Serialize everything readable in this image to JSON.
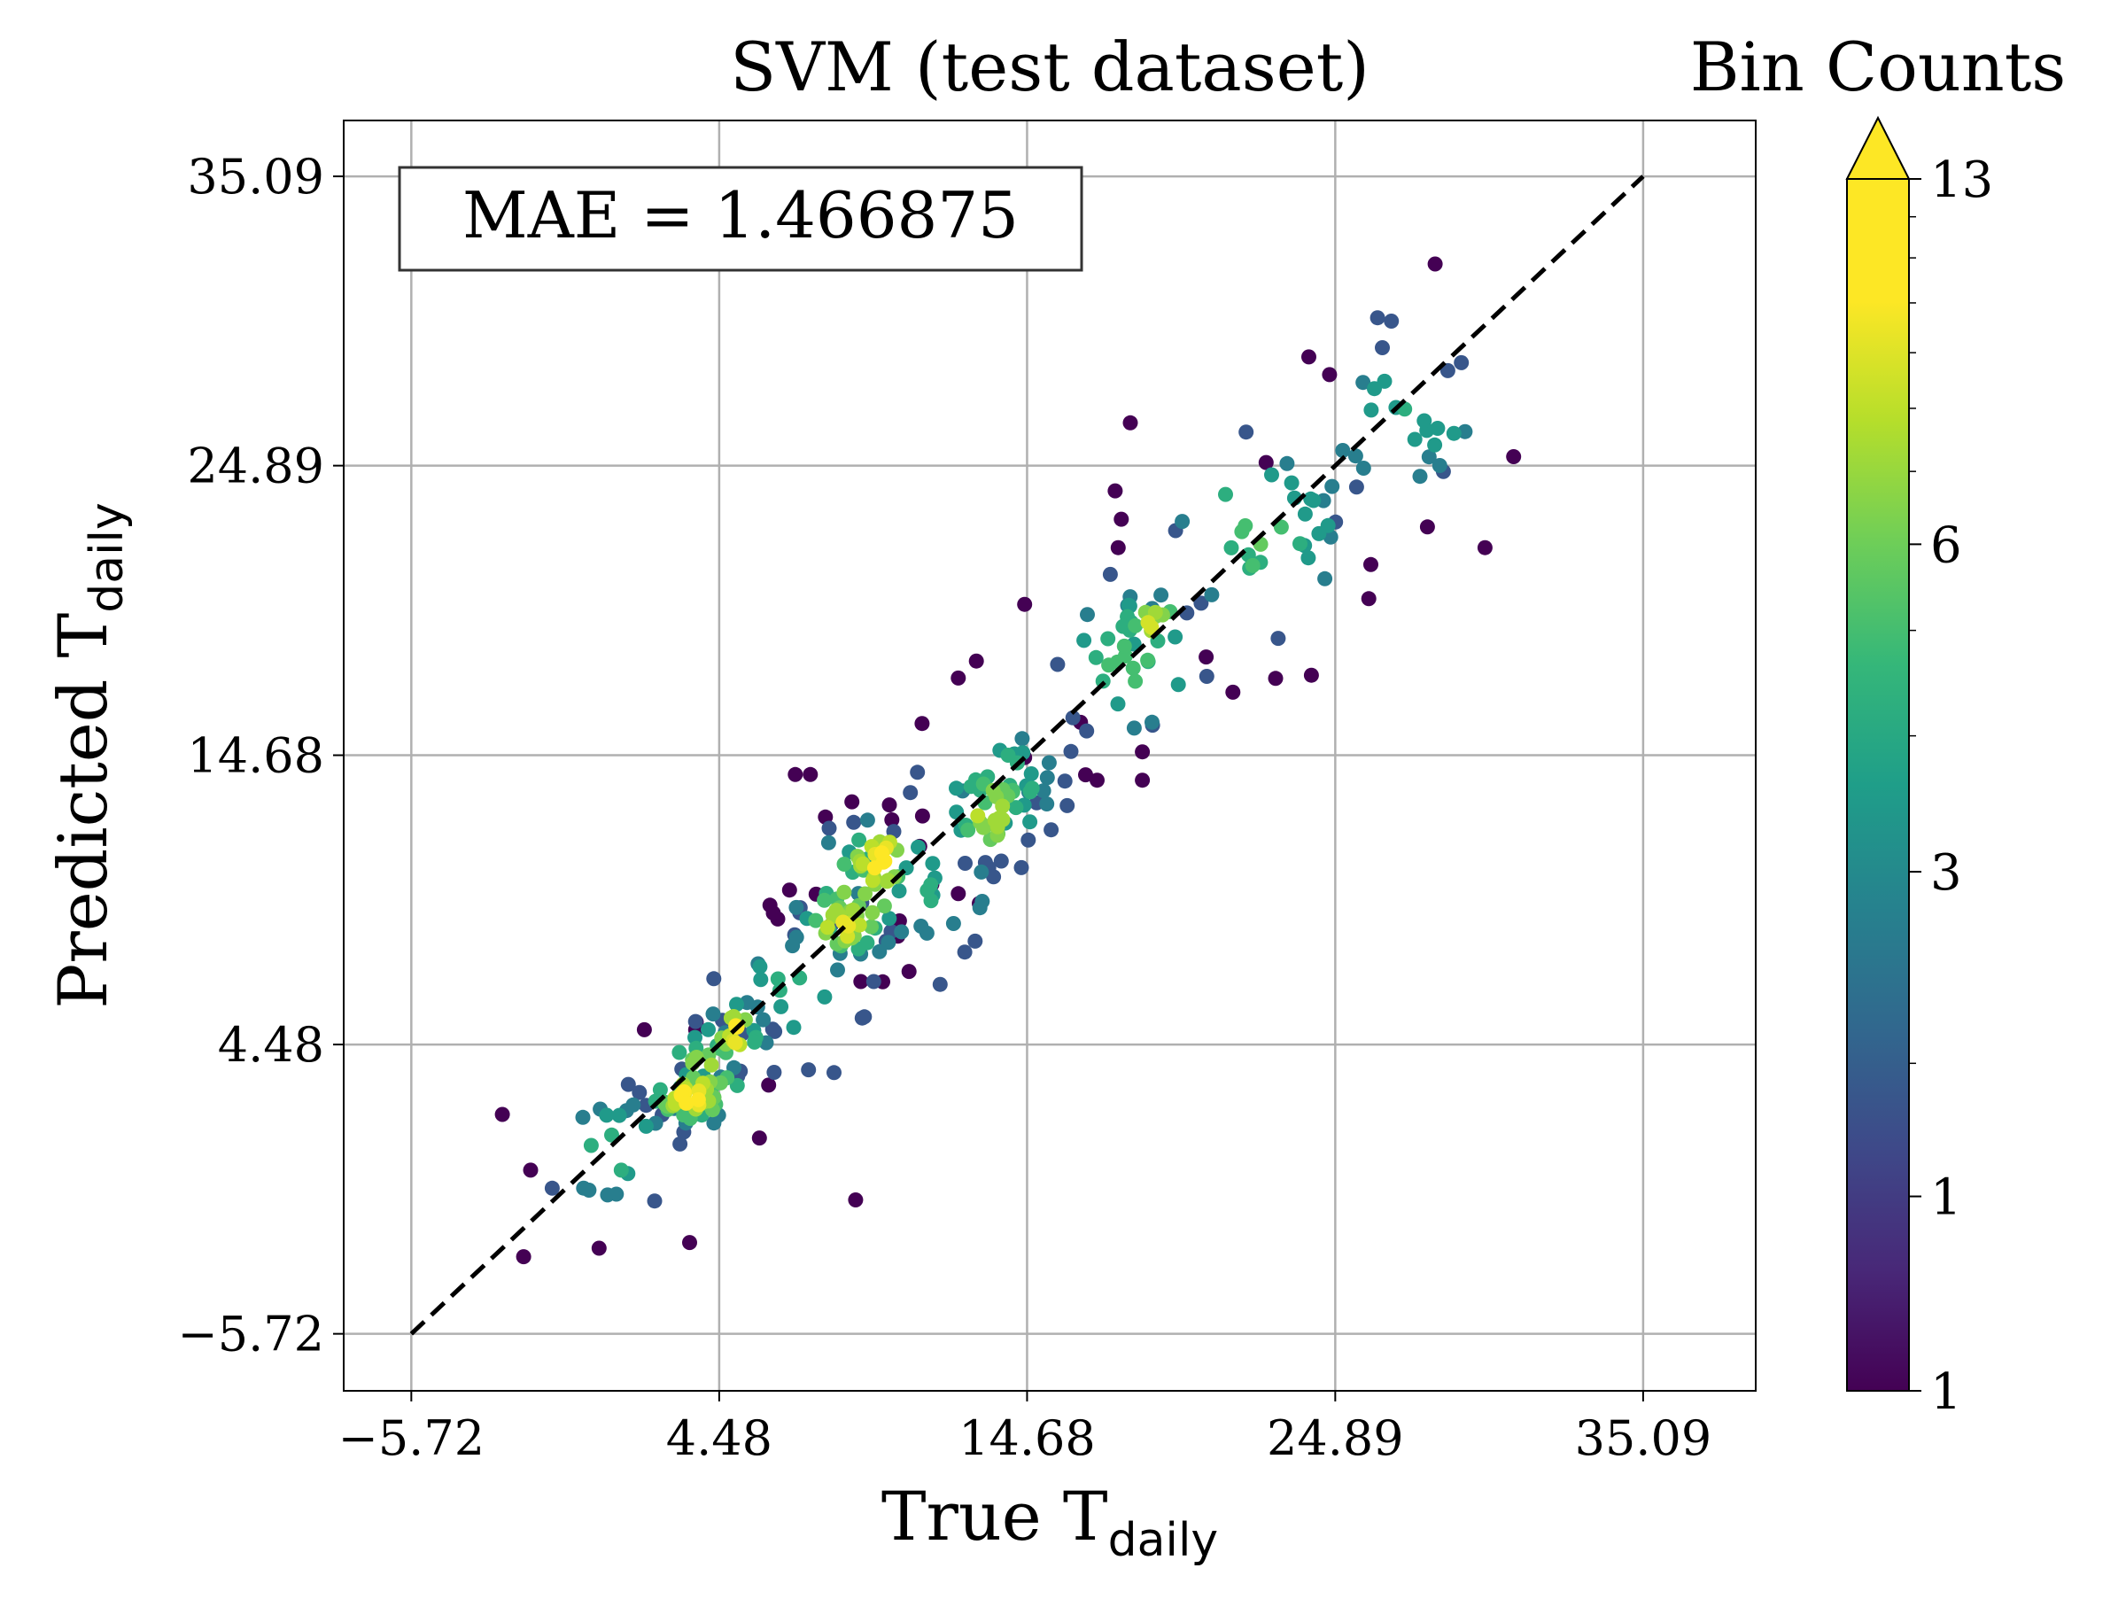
{
  "chart_data": {
    "type": "scatter",
    "title": "SVM (test dataset)",
    "xlabel": {
      "base": "True T",
      "sub": "daily"
    },
    "ylabel": {
      "base": "Predicted T",
      "sub": "daily"
    },
    "xlim": [
      -7.96,
      38.82
    ],
    "ylim": [
      -7.73,
      37.06
    ],
    "xticks": [
      -5.72,
      4.48,
      14.68,
      24.89,
      35.09
    ],
    "xtick_labels": [
      "−5.72",
      "4.48",
      "14.68",
      "24.89",
      "35.09"
    ],
    "yticks": [
      -5.72,
      4.48,
      14.68,
      24.89,
      35.09
    ],
    "ytick_labels": [
      "−5.72",
      "4.48",
      "14.68",
      "24.89",
      "35.09"
    ],
    "grid": true,
    "annotation": "MAE = 1.466875",
    "reference_line": {
      "from": [
        -5.72,
        -5.72
      ],
      "to": [
        35.09,
        35.09
      ],
      "style": "dashed",
      "color": "#000000"
    },
    "colorbar": {
      "label": "Bin Counts",
      "scale": "log",
      "range": [
        1,
        13
      ],
      "extend": "max",
      "ticks": [
        1,
        3,
        6,
        13
      ],
      "tick_labels": [
        "1",
        "3",
        "6",
        "13"
      ],
      "extra_ticks": [
        1.4
      ],
      "extra_tick_labels": [
        "1"
      ],
      "colormap": "viridis"
    },
    "clusters": [
      {
        "x": 3.5,
        "y": 2.6,
        "sx": 0.7,
        "sy": 0.5,
        "n": 40,
        "count": 12
      },
      {
        "x": 5.0,
        "y": 4.9,
        "sx": 0.5,
        "sy": 0.6,
        "n": 25,
        "count": 11
      },
      {
        "x": 4.0,
        "y": 3.4,
        "sx": 0.9,
        "sy": 1.0,
        "n": 30,
        "count": 8
      },
      {
        "x": 9.8,
        "y": 11.0,
        "sx": 0.6,
        "sy": 0.8,
        "n": 28,
        "count": 12
      },
      {
        "x": 8.6,
        "y": 8.7,
        "sx": 0.7,
        "sy": 0.6,
        "n": 35,
        "count": 11
      },
      {
        "x": 9.0,
        "y": 9.6,
        "sx": 1.1,
        "sy": 1.2,
        "n": 30,
        "count": 7
      },
      {
        "x": 13.5,
        "y": 12.7,
        "sx": 0.7,
        "sy": 0.8,
        "n": 30,
        "count": 10
      },
      {
        "x": 13.6,
        "y": 13.4,
        "sx": 1.3,
        "sy": 1.5,
        "n": 35,
        "count": 5
      },
      {
        "x": 18.8,
        "y": 19.3,
        "sx": 0.6,
        "sy": 0.6,
        "n": 18,
        "count": 9
      },
      {
        "x": 18.0,
        "y": 18.0,
        "sx": 1.5,
        "sy": 1.6,
        "n": 30,
        "count": 5
      },
      {
        "x": 22.3,
        "y": 22.7,
        "sx": 1.6,
        "sy": 1.6,
        "n": 30,
        "count": 6
      },
      {
        "x": 27.0,
        "y": 26.5,
        "sx": 1.6,
        "sy": 1.7,
        "n": 30,
        "count": 4
      },
      {
        "x": 1.0,
        "y": 0.7,
        "sx": 1.3,
        "sy": 1.3,
        "n": 22,
        "count": 4
      },
      {
        "x": 6.8,
        "y": 6.2,
        "sx": 1.5,
        "sy": 1.5,
        "n": 25,
        "count": 4
      },
      {
        "x": 11.5,
        "y": 10.3,
        "sx": 1.3,
        "sy": 1.4,
        "n": 22,
        "count": 4
      }
    ],
    "scattered_points": [
      {
        "x": 3.7,
        "y": 5.0,
        "count": 1
      },
      {
        "x": 7.5,
        "y": 14.0,
        "count": 1
      },
      {
        "x": 10.4,
        "y": 8.3,
        "count": 1
      },
      {
        "x": 10.2,
        "y": 12.4,
        "count": 1
      },
      {
        "x": 11.2,
        "y": 15.8,
        "count": 1
      },
      {
        "x": 12.4,
        "y": 17.4,
        "count": 1
      },
      {
        "x": 13.0,
        "y": 18.0,
        "count": 1
      },
      {
        "x": 14.6,
        "y": 20.0,
        "count": 1
      },
      {
        "x": 14.6,
        "y": 14.6,
        "count": 1
      },
      {
        "x": 17.0,
        "y": 13.8,
        "count": 1
      },
      {
        "x": 18.5,
        "y": 13.8,
        "count": 1
      },
      {
        "x": 18.5,
        "y": 14.8,
        "count": 1
      },
      {
        "x": 17.7,
        "y": 22.0,
        "count": 1
      },
      {
        "x": 17.8,
        "y": 23.0,
        "count": 1
      },
      {
        "x": 17.6,
        "y": 24.0,
        "count": 1
      },
      {
        "x": 18.1,
        "y": 26.4,
        "count": 1
      },
      {
        "x": 22.6,
        "y": 25.0,
        "count": 1
      },
      {
        "x": 21.5,
        "y": 16.9,
        "count": 1
      },
      {
        "x": 24.1,
        "y": 17.5,
        "count": 1
      },
      {
        "x": 24.7,
        "y": 28.1,
        "count": 1
      },
      {
        "x": 26.0,
        "y": 20.2,
        "count": 1
      },
      {
        "x": 28.2,
        "y": 32.0,
        "count": 1
      },
      {
        "x": 9.0,
        "y": -1.0,
        "count": 1
      },
      {
        "x": 3.5,
        "y": -2.5,
        "count": 1
      },
      {
        "x": -2.0,
        "y": -3.0,
        "count": 1
      },
      {
        "x": 0.5,
        "y": -2.7,
        "count": 1
      },
      {
        "x": 2.0,
        "y": 5.0,
        "count": 1
      },
      {
        "x": 7.0,
        "y": 14.0,
        "count": 1
      },
      {
        "x": 8.0,
        "y": 12.5,
        "count": 1
      },
      {
        "x": 9.6,
        "y": 6.7,
        "count": 2
      },
      {
        "x": 12.4,
        "y": 9.8,
        "count": 1
      },
      {
        "x": 11.8,
        "y": 6.6,
        "count": 2
      },
      {
        "x": 15.0,
        "y": 13.0,
        "count": 2
      },
      {
        "x": 16.2,
        "y": 16.0,
        "count": 2
      },
      {
        "x": 6.3,
        "y": 3.5,
        "count": 2
      },
      {
        "x": 4.3,
        "y": 6.8,
        "count": 2
      },
      {
        "x": 19.6,
        "y": 22.6,
        "count": 2
      },
      {
        "x": 23.0,
        "y": 18.8,
        "count": 2
      },
      {
        "x": 24.9,
        "y": 22.9,
        "count": 2
      },
      {
        "x": 28.0,
        "y": 25.2,
        "count": 3
      }
    ]
  }
}
